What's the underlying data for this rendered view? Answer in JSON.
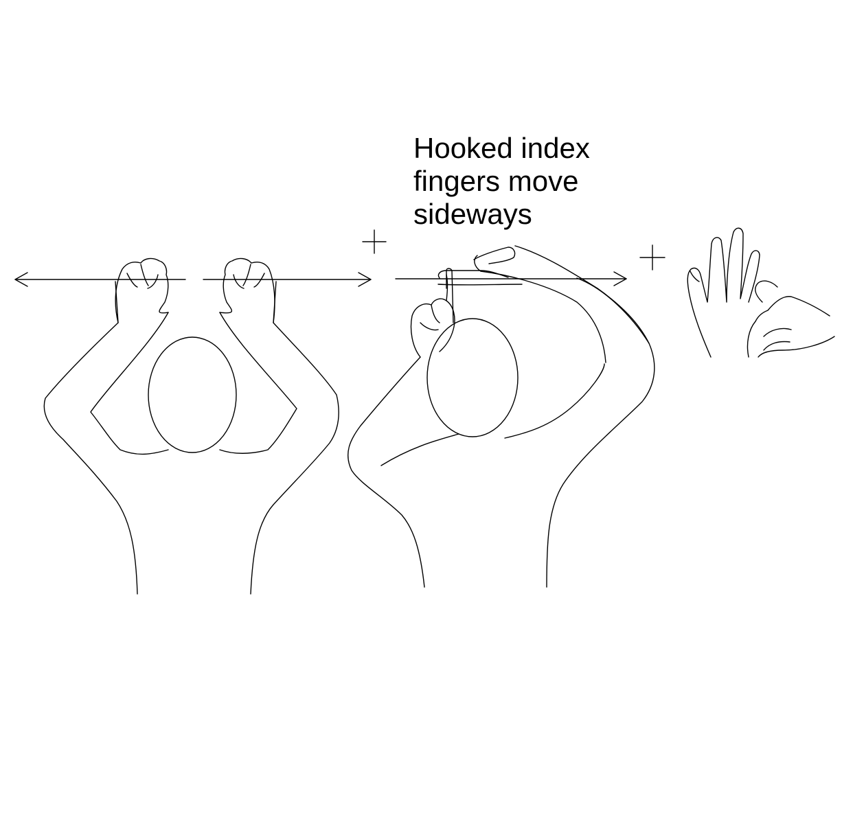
{
  "caption": {
    "lines": [
      "Hooked index",
      "fingers move",
      "sideways"
    ]
  },
  "figures": [
    {
      "name": "signer-front-view",
      "movement": "both fists move apart sideways"
    },
    {
      "name": "signer-side-view",
      "movement": "hooked index fingers move sideways"
    },
    {
      "name": "handshape-closeup",
      "movement": "hooked index finger"
    }
  ],
  "separators": [
    "+",
    "+"
  ],
  "colors": {
    "line": "#000000",
    "background": "#ffffff"
  }
}
